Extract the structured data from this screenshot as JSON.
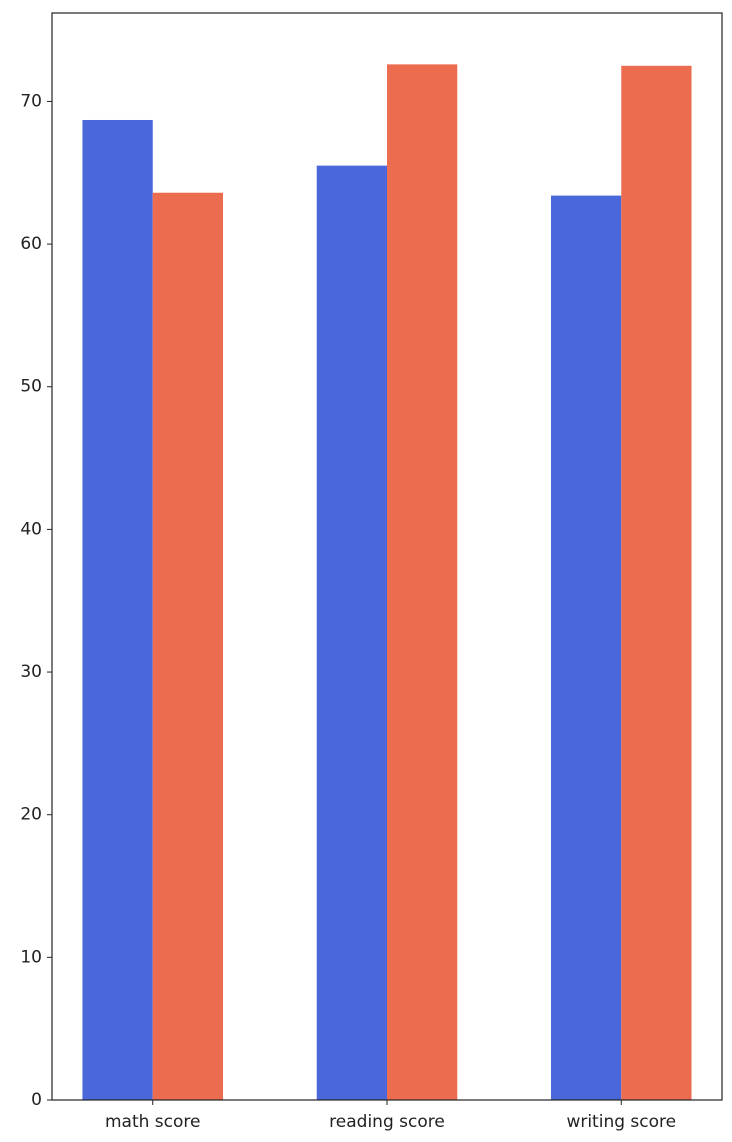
{
  "chart_data": {
    "type": "bar",
    "categories": [
      "math score",
      "reading score",
      "writing score"
    ],
    "series": [
      {
        "color": "#4a68d9",
        "values": [
          68.7,
          65.5,
          63.4
        ]
      },
      {
        "color": "#ec6c50",
        "values": [
          63.6,
          72.6,
          72.5
        ]
      }
    ],
    "ylim": [
      0,
      76.2
    ],
    "yticks": [
      0,
      10,
      20,
      30,
      40,
      50,
      60,
      70
    ],
    "grid": false
  }
}
